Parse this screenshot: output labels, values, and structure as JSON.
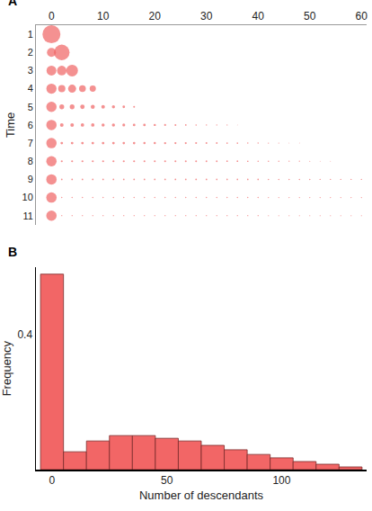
{
  "chart_data": [
    {
      "type": "bubble",
      "label": "A",
      "y_label": "Time",
      "color": "#f06262",
      "xlim": [
        -3,
        61
      ],
      "xticks": [
        0,
        10,
        20,
        30,
        40,
        50,
        60
      ],
      "ylim": [
        11.5,
        0.5
      ],
      "yticks": [
        1,
        2,
        3,
        4,
        5,
        6,
        7,
        8,
        9,
        10,
        11
      ],
      "rows": [
        {
          "time": 1,
          "x": [
            0
          ],
          "sizes": [
            1
          ]
        },
        {
          "time": 2,
          "x": [
            0,
            2
          ],
          "sizes": [
            0.25,
            0.75
          ]
        },
        {
          "time": 3,
          "x": [
            0,
            2,
            4
          ],
          "sizes": [
            0.3,
            0.28,
            0.42
          ]
        },
        {
          "time": 4,
          "x": [
            0,
            2,
            4,
            6,
            8
          ],
          "sizes": [
            0.32,
            0.16,
            0.2,
            0.14,
            0.12
          ]
        },
        {
          "time": 5,
          "x": [
            0,
            2,
            4,
            6,
            8,
            10,
            12,
            14,
            16
          ],
          "sizes": [
            0.33,
            0.07,
            0.07,
            0.06,
            0.05,
            0.04,
            0.03,
            0.02,
            0.01
          ]
        },
        {
          "time": 6,
          "x": [
            0,
            2,
            4,
            6,
            8,
            10,
            12,
            14,
            16,
            18,
            20,
            22,
            24,
            26,
            28,
            30,
            32,
            34,
            36
          ],
          "sizes": [
            0.33,
            0.04,
            0.04,
            0.035,
            0.035,
            0.03,
            0.03,
            0.025,
            0.02,
            0.02,
            0.015,
            0.012,
            0.01,
            0.008,
            0.006,
            0.005,
            0.004,
            0.003,
            0.002
          ]
        },
        {
          "time": 7,
          "x": [
            0,
            2,
            4,
            6,
            8,
            10,
            12,
            14,
            16,
            18,
            20,
            22,
            24,
            26,
            28,
            30,
            32,
            34,
            36,
            38,
            40,
            42,
            44,
            46,
            48
          ],
          "sizes": [
            0.33,
            0.02,
            0.02,
            0.02,
            0.02,
            0.02,
            0.02,
            0.018,
            0.018,
            0.016,
            0.015,
            0.014,
            0.013,
            0.012,
            0.011,
            0.01,
            0.009,
            0.008,
            0.007,
            0.006,
            0.005,
            0.004,
            0.003,
            0.002,
            0.002
          ]
        },
        {
          "time": 8,
          "x": [
            0,
            2,
            4,
            6,
            8,
            10,
            12,
            14,
            16,
            18,
            20,
            22,
            24,
            26,
            28,
            30,
            32,
            34,
            36,
            38,
            40,
            42,
            44,
            46,
            48,
            50,
            52,
            54
          ],
          "sizes": [
            0.33,
            0.012,
            0.012,
            0.012,
            0.012,
            0.012,
            0.012,
            0.012,
            0.012,
            0.011,
            0.011,
            0.011,
            0.01,
            0.01,
            0.01,
            0.009,
            0.009,
            0.008,
            0.008,
            0.007,
            0.006,
            0.006,
            0.005,
            0.004,
            0.004,
            0.003,
            0.002,
            0.002
          ]
        },
        {
          "time": 9,
          "x": [
            0,
            2,
            4,
            6,
            8,
            10,
            12,
            14,
            16,
            18,
            20,
            22,
            24,
            26,
            28,
            30,
            32,
            34,
            36,
            38,
            40,
            42,
            44,
            46,
            48,
            50,
            52,
            54,
            56,
            58,
            60
          ],
          "sizes": [
            0.333,
            0.008,
            0.008,
            0.008,
            0.008,
            0.008,
            0.008,
            0.008,
            0.008,
            0.008,
            0.008,
            0.008,
            0.008,
            0.008,
            0.008,
            0.008,
            0.007,
            0.007,
            0.007,
            0.007,
            0.007,
            0.006,
            0.006,
            0.006,
            0.006,
            0.006,
            0.005,
            0.005,
            0.005,
            0.005,
            0.005
          ]
        },
        {
          "time": 10,
          "x": [
            0,
            2,
            4,
            6,
            8,
            10,
            12,
            14,
            16,
            18,
            20,
            22,
            24,
            26,
            28,
            30,
            32,
            34,
            36,
            38,
            40,
            42,
            44,
            46,
            48,
            50,
            52,
            54,
            56,
            58,
            60
          ],
          "sizes": [
            0.333,
            0.005,
            0.005,
            0.005,
            0.005,
            0.005,
            0.005,
            0.005,
            0.005,
            0.005,
            0.005,
            0.005,
            0.005,
            0.005,
            0.005,
            0.005,
            0.005,
            0.005,
            0.005,
            0.005,
            0.005,
            0.004,
            0.004,
            0.004,
            0.004,
            0.004,
            0.004,
            0.004,
            0.004,
            0.004,
            0.004
          ]
        },
        {
          "time": 11,
          "x": [
            0,
            2,
            4,
            6,
            8,
            10,
            12,
            14,
            16,
            18,
            20,
            22,
            24,
            26,
            28,
            30,
            32,
            34,
            36,
            38,
            40,
            42,
            44,
            46,
            48,
            50,
            52,
            54,
            56,
            58,
            60
          ],
          "sizes": [
            0.333,
            0.004,
            0.004,
            0.004,
            0.004,
            0.004,
            0.004,
            0.004,
            0.004,
            0.004,
            0.004,
            0.004,
            0.004,
            0.004,
            0.004,
            0.004,
            0.004,
            0.004,
            0.004,
            0.004,
            0.004,
            0.003,
            0.003,
            0.003,
            0.003,
            0.003,
            0.003,
            0.003,
            0.003,
            0.003,
            0.003
          ]
        }
      ]
    },
    {
      "type": "histogram",
      "label": "B",
      "x_label": "Number of descendants",
      "y_label": "Frequency",
      "color": "#f26666",
      "bins": [
        -5,
        5,
        15,
        25,
        35,
        45,
        55,
        65,
        75,
        85,
        95,
        105,
        115,
        125,
        135
      ],
      "values": [
        0.58,
        0.053,
        0.085,
        0.101,
        0.101,
        0.093,
        0.085,
        0.072,
        0.059,
        0.045,
        0.035,
        0.024,
        0.016,
        0.008
      ],
      "xlim": [
        -7,
        137
      ],
      "xticks": [
        0,
        50,
        100
      ],
      "ylim": [
        0,
        0.6
      ],
      "yticks": [
        0.4
      ]
    }
  ]
}
